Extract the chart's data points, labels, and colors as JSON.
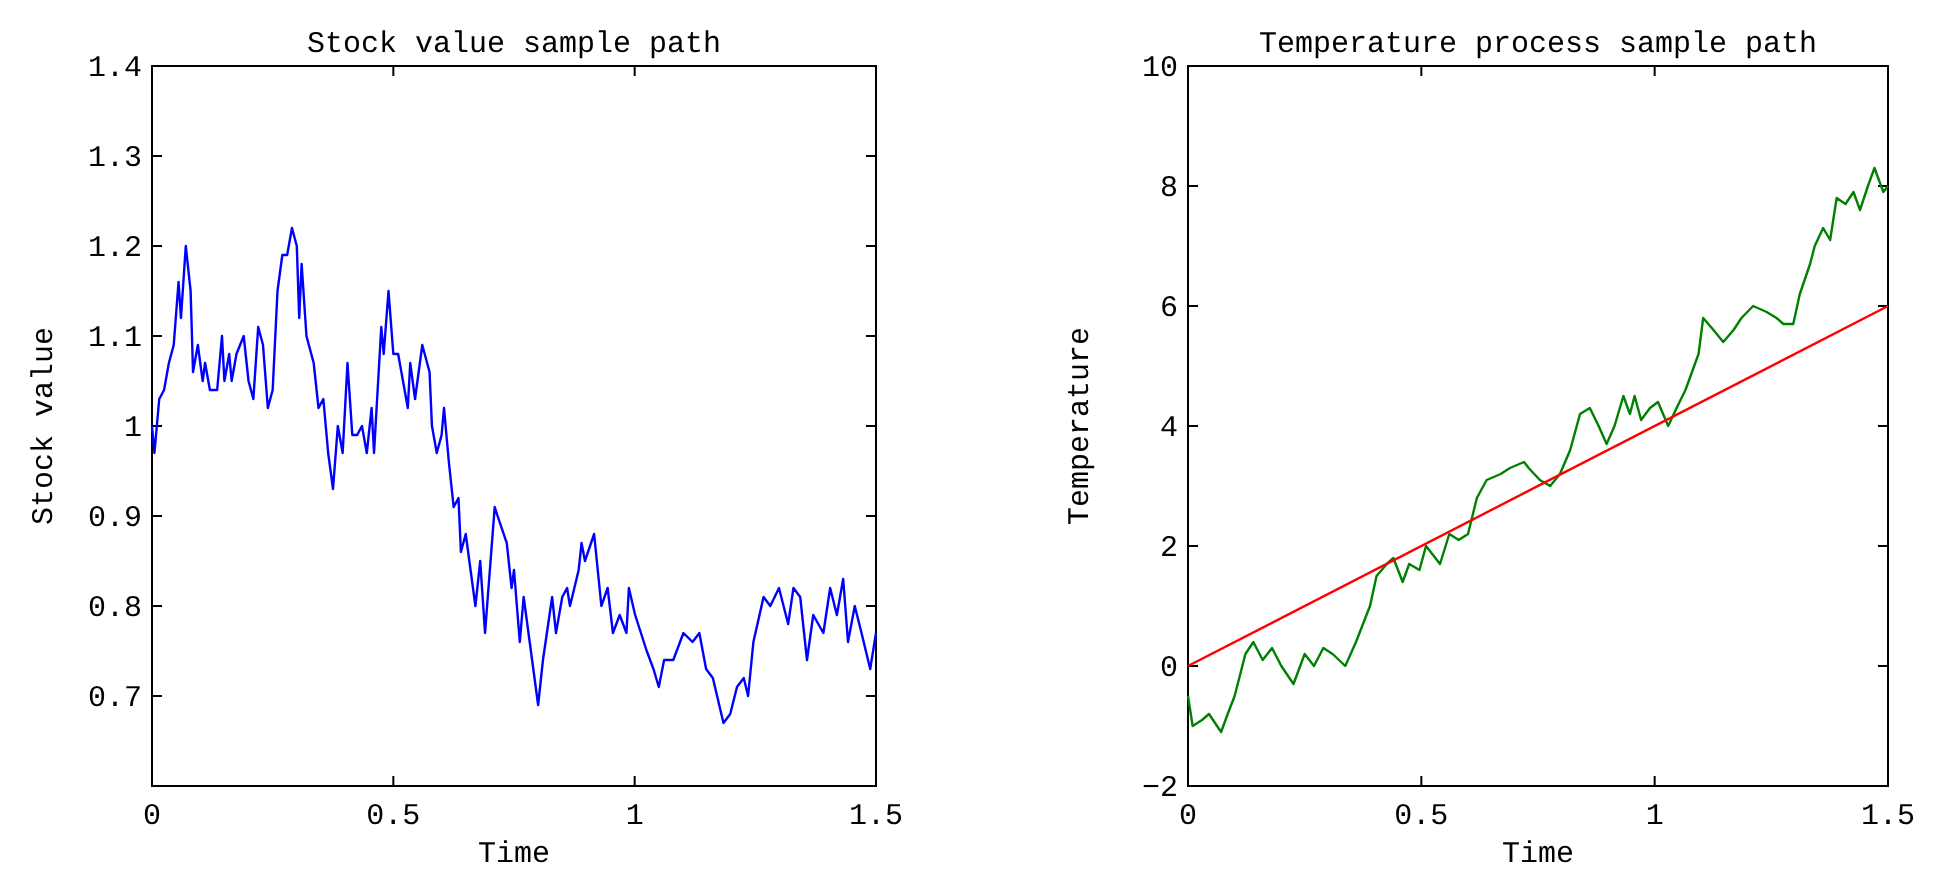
{
  "chart_data": [
    {
      "type": "line",
      "title": "Stock value sample path",
      "xlabel": "Time",
      "ylabel": "Stock value",
      "xlim": [
        0,
        1.5
      ],
      "ylim": [
        0.6,
        1.4
      ],
      "xticks": [
        0,
        0.5,
        1,
        1.5
      ],
      "yticks": [
        0.7,
        0.8,
        0.9,
        1,
        1.1,
        1.2,
        1.3,
        1.4
      ],
      "grid": false,
      "series": [
        {
          "color": "#0000ff",
          "x": [
            0,
            0.005,
            0.015,
            0.025,
            0.035,
            0.045,
            0.055,
            0.06,
            0.07,
            0.08,
            0.085,
            0.095,
            0.105,
            0.11,
            0.12,
            0.135,
            0.145,
            0.15,
            0.16,
            0.165,
            0.175,
            0.19,
            0.2,
            0.21,
            0.22,
            0.23,
            0.24,
            0.25,
            0.26,
            0.27,
            0.28,
            0.29,
            0.3,
            0.305,
            0.31,
            0.32,
            0.335,
            0.345,
            0.355,
            0.365,
            0.375,
            0.385,
            0.395,
            0.405,
            0.415,
            0.425,
            0.435,
            0.445,
            0.455,
            0.46,
            0.475,
            0.48,
            0.49,
            0.5,
            0.51,
            0.52,
            0.53,
            0.535,
            0.545,
            0.56,
            0.575,
            0.58,
            0.59,
            0.6,
            0.605,
            0.615,
            0.625,
            0.635,
            0.64,
            0.65,
            0.66,
            0.67,
            0.68,
            0.69,
            0.71,
            0.716,
            0.735,
            0.745,
            0.75,
            0.762,
            0.77,
            0.78,
            0.8,
            0.81,
            0.829,
            0.837,
            0.85,
            0.86,
            0.866,
            0.884,
            0.89,
            0.897,
            0.916,
            0.931,
            0.944,
            0.955,
            0.969,
            0.983,
            0.988,
            1.001,
            1.025,
            1.039,
            1.05,
            1.061,
            1.08,
            1.101,
            1.12,
            1.134,
            1.148,
            1.162,
            1.184,
            1.198,
            1.212,
            1.226,
            1.235,
            1.246,
            1.267,
            1.281,
            1.299,
            1.318,
            1.329,
            1.343,
            1.357,
            1.37,
            1.391,
            1.405,
            1.419,
            1.432,
            1.442,
            1.456,
            1.47,
            1.488,
            1.5
          ],
          "values": [
            1.0,
            0.97,
            1.03,
            1.04,
            1.07,
            1.09,
            1.16,
            1.12,
            1.2,
            1.15,
            1.06,
            1.09,
            1.05,
            1.07,
            1.04,
            1.04,
            1.1,
            1.05,
            1.08,
            1.05,
            1.08,
            1.1,
            1.05,
            1.03,
            1.11,
            1.09,
            1.02,
            1.04,
            1.15,
            1.19,
            1.19,
            1.22,
            1.2,
            1.12,
            1.18,
            1.1,
            1.07,
            1.02,
            1.03,
            0.97,
            0.93,
            1.0,
            0.97,
            1.07,
            0.99,
            0.99,
            1.0,
            0.97,
            1.02,
            0.97,
            1.11,
            1.08,
            1.15,
            1.08,
            1.08,
            1.05,
            1.02,
            1.07,
            1.03,
            1.09,
            1.06,
            1.0,
            0.97,
            0.99,
            1.02,
            0.96,
            0.91,
            0.92,
            0.86,
            0.88,
            0.84,
            0.8,
            0.85,
            0.77,
            0.91,
            0.9,
            0.87,
            0.82,
            0.84,
            0.76,
            0.81,
            0.77,
            0.69,
            0.74,
            0.81,
            0.77,
            0.81,
            0.82,
            0.8,
            0.84,
            0.87,
            0.85,
            0.88,
            0.8,
            0.82,
            0.77,
            0.79,
            0.77,
            0.82,
            0.79,
            0.75,
            0.73,
            0.71,
            0.74,
            0.74,
            0.77,
            0.76,
            0.77,
            0.73,
            0.72,
            0.67,
            0.68,
            0.71,
            0.72,
            0.7,
            0.76,
            0.81,
            0.8,
            0.82,
            0.78,
            0.82,
            0.81,
            0.74,
            0.79,
            0.77,
            0.82,
            0.79,
            0.83,
            0.76,
            0.8,
            0.77,
            0.73,
            0.77
          ]
        }
      ]
    },
    {
      "type": "line",
      "title": "Temperature process sample path",
      "xlabel": "Time",
      "ylabel": "Temperature",
      "xlim": [
        0,
        1.5
      ],
      "ylim": [
        -2,
        10
      ],
      "xticks": [
        0,
        0.5,
        1,
        1.5
      ],
      "yticks": [
        {
          "value": -2,
          "label": "−2"
        },
        0,
        2,
        4,
        6,
        8,
        10
      ],
      "grid": false,
      "series": [
        {
          "color": "#008000",
          "x": [
            0,
            0.01,
            0.03,
            0.045,
            0.071,
            0.085,
            0.1,
            0.123,
            0.14,
            0.16,
            0.18,
            0.2,
            0.226,
            0.25,
            0.27,
            0.29,
            0.31,
            0.337,
            0.36,
            0.38,
            0.39,
            0.404,
            0.426,
            0.44,
            0.46,
            0.474,
            0.496,
            0.51,
            0.54,
            0.56,
            0.58,
            0.6,
            0.619,
            0.64,
            0.67,
            0.69,
            0.72,
            0.73,
            0.754,
            0.776,
            0.797,
            0.819,
            0.84,
            0.861,
            0.88,
            0.897,
            0.914,
            0.933,
            0.947,
            0.957,
            0.971,
            0.99,
            1.007,
            1.029,
            1.047,
            1.066,
            1.08,
            1.094,
            1.104,
            1.126,
            1.147,
            1.169,
            1.186,
            1.211,
            1.24,
            1.261,
            1.276,
            1.297,
            1.311,
            1.333,
            1.343,
            1.361,
            1.376,
            1.39,
            1.409,
            1.426,
            1.44,
            1.457,
            1.471,
            1.49,
            1.5
          ],
          "values": [
            -0.5,
            -1.0,
            -0.9,
            -0.8,
            -1.1,
            -0.8,
            -0.5,
            0.2,
            0.4,
            0.1,
            0.3,
            0.0,
            -0.3,
            0.2,
            0.0,
            0.3,
            0.2,
            0.0,
            0.4,
            0.8,
            1.0,
            1.5,
            1.7,
            1.8,
            1.4,
            1.7,
            1.6,
            2.0,
            1.7,
            2.2,
            2.1,
            2.2,
            2.8,
            3.1,
            3.2,
            3.3,
            3.4,
            3.3,
            3.1,
            3.0,
            3.2,
            3.6,
            4.2,
            4.3,
            4.0,
            3.7,
            4.0,
            4.5,
            4.2,
            4.5,
            4.1,
            4.3,
            4.4,
            4.0,
            4.3,
            4.6,
            4.9,
            5.2,
            5.8,
            5.6,
            5.4,
            5.6,
            5.8,
            6.0,
            5.9,
            5.8,
            5.7,
            5.7,
            6.2,
            6.7,
            7.0,
            7.3,
            7.1,
            7.8,
            7.7,
            7.9,
            7.6,
            8.0,
            8.3,
            7.9,
            8.0
          ]
        },
        {
          "color": "#ff0000",
          "x": [
            0,
            1.5
          ],
          "values": [
            0,
            6
          ]
        }
      ]
    }
  ]
}
